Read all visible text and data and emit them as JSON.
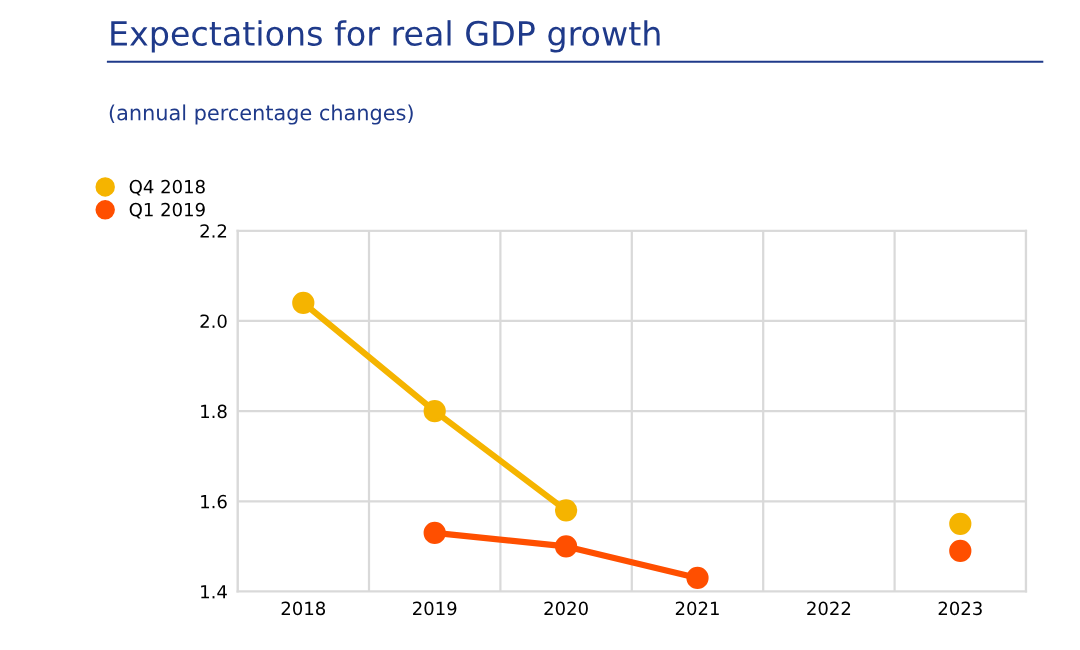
{
  "chart_data": {
    "type": "line",
    "title": "Expectations for real GDP growth",
    "subtitle": "(annual percentage changes)",
    "categories": [
      "2018",
      "2019",
      "2020",
      "2021",
      "2022",
      "2023"
    ],
    "series": [
      {
        "name": "Q4 2018",
        "color": "#f5b400",
        "values": [
          2.04,
          1.8,
          1.58,
          null,
          null,
          1.55
        ]
      },
      {
        "name": "Q1 2019",
        "color": "#ff4f00",
        "values": [
          null,
          1.53,
          1.5,
          1.43,
          null,
          1.49
        ]
      }
    ],
    "ylim": [
      1.4,
      2.2
    ],
    "yticks": [
      {
        "value": 1.4,
        "label": "1.4"
      },
      {
        "value": 1.6,
        "label": "1.6"
      },
      {
        "value": 1.8,
        "label": "1.8"
      },
      {
        "value": 2.0,
        "label": "2.0"
      },
      {
        "value": 2.2,
        "label": "2.2"
      }
    ],
    "grid": true,
    "legend": "top left",
    "marker": "circle",
    "line_style": "solid"
  }
}
